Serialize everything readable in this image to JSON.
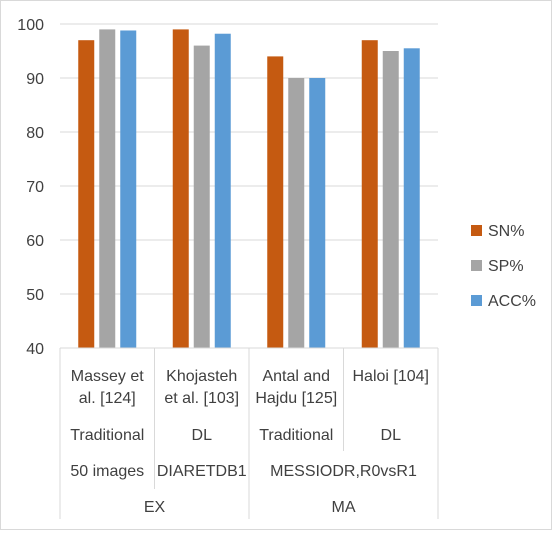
{
  "chart_data": {
    "type": "bar",
    "title": "",
    "xlabel": "",
    "ylabel": "",
    "ylim": [
      40,
      100
    ],
    "yticks": [
      40,
      50,
      60,
      70,
      80,
      90,
      100
    ],
    "grid": true,
    "legend_position": "right",
    "categories": [
      {
        "method": [
          "Massey et",
          "al. [124]"
        ],
        "type": "Traditional"
      },
      {
        "method": [
          "Khojasteh",
          "et al. [103]"
        ],
        "type": "DL"
      },
      {
        "method": [
          "Antal and",
          "Hajdu [125]"
        ],
        "type": "Traditional"
      },
      {
        "method": [
          "Haloi [104]"
        ],
        "type": "DL"
      }
    ],
    "datasets": [
      {
        "label": "50 images",
        "span": [
          0,
          0
        ]
      },
      {
        "label": "DIARETDB1",
        "span": [
          1,
          1
        ]
      },
      {
        "label": "MESSIODR,R0vsR1",
        "span": [
          2,
          3
        ]
      }
    ],
    "groups": [
      {
        "label": "EX",
        "span": [
          0,
          1
        ]
      },
      {
        "label": "MA",
        "span": [
          2,
          3
        ]
      }
    ],
    "series": [
      {
        "name": "SN%",
        "color": "#c55a11",
        "values": [
          97,
          99,
          94,
          97
        ]
      },
      {
        "name": "SP%",
        "color": "#a5a5a5",
        "values": [
          99,
          96,
          90,
          95
        ]
      },
      {
        "name": "ACC%",
        "color": "#5b9bd5",
        "values": [
          98.8,
          98.2,
          90,
          95.5
        ]
      }
    ]
  }
}
